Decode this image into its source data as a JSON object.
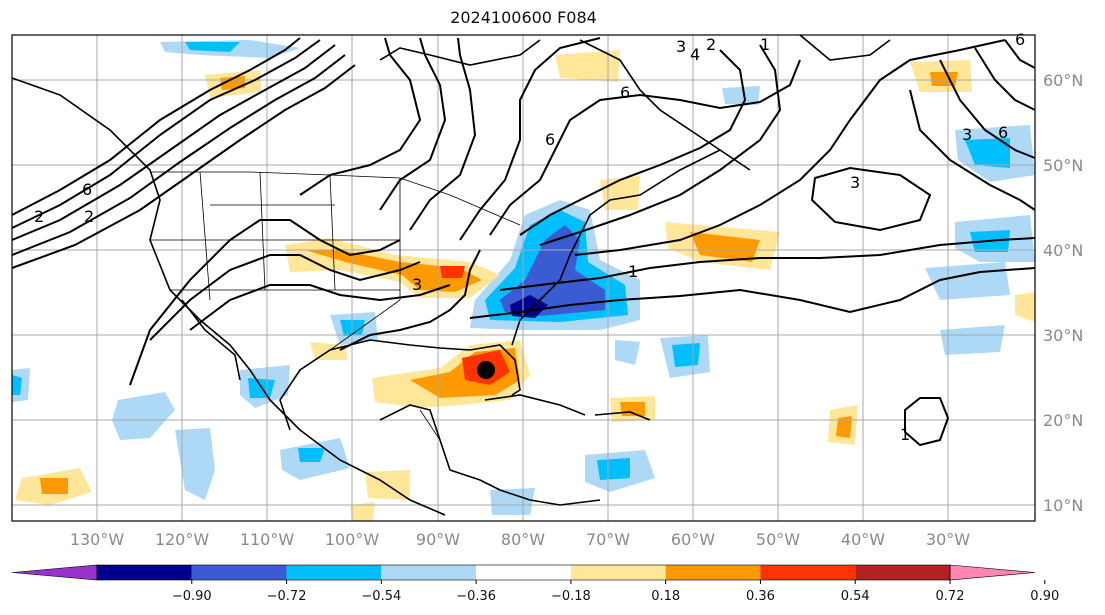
{
  "title": "2024100600 F084",
  "lat_labels": [
    "10°N",
    "20°N",
    "30°N",
    "40°N",
    "50°N",
    "60°N"
  ],
  "lon_labels": [
    "130°W",
    "120°W",
    "110°W",
    "100°W",
    "90°W",
    "80°W",
    "70°W",
    "60°W",
    "50°W",
    "40°W",
    "30°W"
  ],
  "colorbar": {
    "ticks": [
      "−0.90",
      "−0.72",
      "−0.54",
      "−0.36",
      "−0.18",
      "0.18",
      "0.36",
      "0.54",
      "0.72",
      "0.90"
    ],
    "colors": [
      "#9932cc",
      "#00008b",
      "#3a5bd1",
      "#00bfff",
      "#add8f6",
      "#ffffff",
      "#ffe699",
      "#ff9900",
      "#ff3300",
      "#b22222",
      "#ff85b3"
    ]
  },
  "contour_labels": [
    "6",
    "2",
    "2",
    "3",
    "6",
    "3",
    "4",
    "2",
    "1",
    "6",
    "6",
    "3",
    "6",
    "3",
    "1",
    "1"
  ],
  "storm_marker": "storm-center",
  "colors": {
    "positive_light": "#ffe699",
    "positive_mid": "#ff9900",
    "positive_strong": "#ff3300",
    "negative_light": "#add8f6",
    "negative_mid": "#00bfff",
    "negative_strong": "#3a5bd1",
    "negative_deep": "#00008b"
  }
}
